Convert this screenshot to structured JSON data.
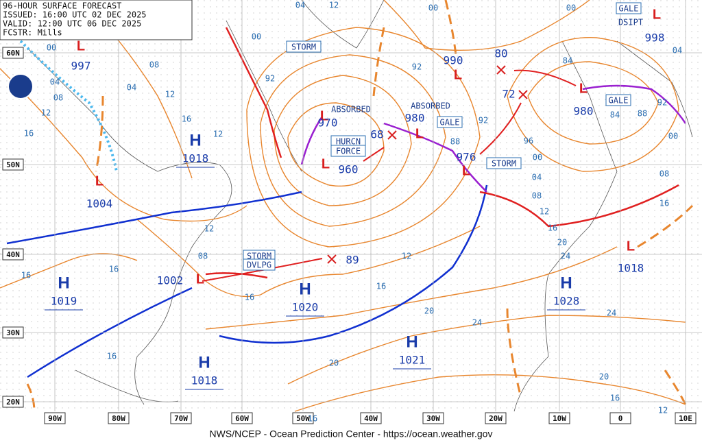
{
  "header": {
    "title": "96-HOUR SURFACE FORECAST",
    "issued": "ISSUED: 16:00 UTC 02 DEC 2025",
    "valid": "VALID: 12:00 UTC 06 DEC 2025",
    "forecaster": "FCSTR: Mills"
  },
  "footer": "NWS/NCEP - Ocean Prediction Center - https://ocean.weather.gov",
  "latitude_labels": [
    "60N",
    "50N",
    "40N",
    "30N",
    "20N"
  ],
  "longitude_labels": [
    "90W",
    "80W",
    "70W",
    "60W",
    "50W",
    "40W",
    "30W",
    "20W",
    "10W",
    "0",
    "10E"
  ],
  "highs": [
    {
      "symbol": "H",
      "pressure": "1018"
    },
    {
      "symbol": "H",
      "pressure": "1019"
    },
    {
      "symbol": "H",
      "pressure": "1020"
    },
    {
      "symbol": "H",
      "pressure": "1021"
    },
    {
      "symbol": "H",
      "pressure": "1018"
    },
    {
      "symbol": "H",
      "pressure": "1028"
    }
  ],
  "lows": [
    {
      "symbol": "L",
      "pressure": "997"
    },
    {
      "symbol": "L",
      "pressure": "1004"
    },
    {
      "symbol": "L",
      "pressure": "1002"
    },
    {
      "symbol": "L",
      "pressure": "970"
    },
    {
      "symbol": "L",
      "pressure": "960"
    },
    {
      "symbol": "L",
      "pressure": "980"
    },
    {
      "symbol": "L",
      "pressure": "976"
    },
    {
      "symbol": "L",
      "pressure": "990"
    },
    {
      "symbol": "L",
      "pressure": "980"
    },
    {
      "symbol": "L",
      "pressure": "998"
    },
    {
      "symbol": "L",
      "pressure": "1018"
    }
  ],
  "forecast_points": [
    "68",
    "89",
    "80",
    "72"
  ],
  "boxed_labels": [
    "STORM",
    "HURCN",
    "FORCE",
    "GALE",
    "STORM",
    "GALE",
    "GALE",
    "STORM",
    "DVLPG"
  ],
  "plain_labels": [
    "ABSORBED",
    "ABSORBED",
    "DSIPT"
  ],
  "isobar_labels": [
    "04",
    "12",
    "00",
    "00",
    "04",
    "00",
    "00",
    "08",
    "04",
    "08",
    "12",
    "04",
    "12",
    "16",
    "16",
    "12",
    "92",
    "92",
    "84",
    "92",
    "84",
    "88",
    "88",
    "92",
    "96",
    "00",
    "04",
    "08",
    "12",
    "16",
    "00",
    "08",
    "16",
    "20",
    "24",
    "12",
    "08",
    "16",
    "12",
    "16",
    "20",
    "24",
    "24",
    "20",
    "20",
    "16",
    "12",
    "16",
    "16",
    "16",
    "16"
  ]
}
